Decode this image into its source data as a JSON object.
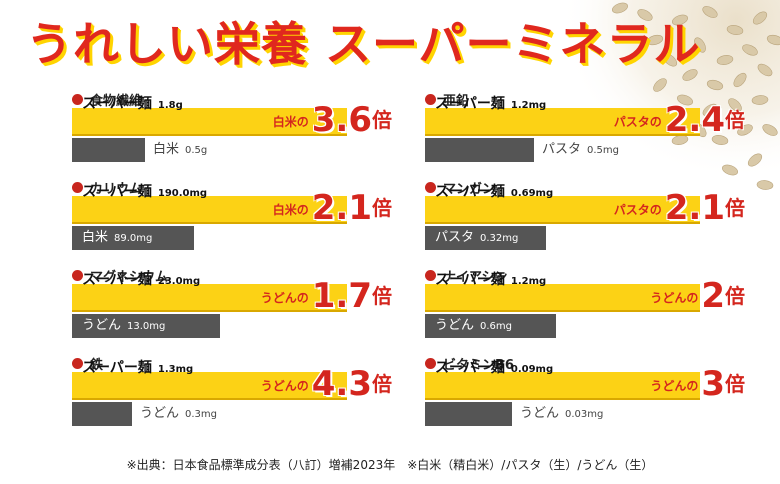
{
  "title": "うれしい栄養 スーパーミネラル",
  "footnote": "※出典：日本食品標準成分表（八訂）増補2023年　※白米（精白米）/パスタ（生）/うどん（生）",
  "colors": {
    "title": "#e0281e",
    "title_shadow": "#ffd400",
    "bar_top": "#fcd215",
    "bar_bottom": "#555555",
    "accent": "#d4261e"
  },
  "chart_data": [
    {
      "type": "bar",
      "label": "食物繊維",
      "top": {
        "name": "スーパー麺",
        "value": 1.8,
        "unit": "g",
        "value_text": "1.8g"
      },
      "bottom": {
        "name": "白米",
        "value": 0.5,
        "unit": "g",
        "value_text": "0.5g"
      },
      "ratio_prefix": "白米の",
      "ratio": "3.6",
      "ratio_suffix": "倍"
    },
    {
      "type": "bar",
      "label": "カリウム",
      "top": {
        "name": "スーパー麺",
        "value": 190.0,
        "unit": "mg",
        "value_text": "190.0mg"
      },
      "bottom": {
        "name": "白米",
        "value": 89.0,
        "unit": "mg",
        "value_text": "89.0mg"
      },
      "ratio_prefix": "白米の",
      "ratio": "2.1",
      "ratio_suffix": "倍"
    },
    {
      "type": "bar",
      "label": "マグネシウム",
      "top": {
        "name": "スーパー麺",
        "value": 23.0,
        "unit": "mg",
        "value_text": "23.0mg"
      },
      "bottom": {
        "name": "うどん",
        "value": 13.0,
        "unit": "mg",
        "value_text": "13.0mg"
      },
      "ratio_prefix": "うどんの",
      "ratio": "1.7",
      "ratio_suffix": "倍"
    },
    {
      "type": "bar",
      "label": "鉄",
      "top": {
        "name": "スーパー麺",
        "value": 1.3,
        "unit": "mg",
        "value_text": "1.3mg"
      },
      "bottom": {
        "name": "うどん",
        "value": 0.3,
        "unit": "mg",
        "value_text": "0.3mg"
      },
      "ratio_prefix": "うどんの",
      "ratio": "4.3",
      "ratio_suffix": "倍"
    },
    {
      "type": "bar",
      "label": "亜鉛",
      "top": {
        "name": "スーパー麺",
        "value": 1.2,
        "unit": "mg",
        "value_text": "1.2mg"
      },
      "bottom": {
        "name": "パスタ",
        "value": 0.5,
        "unit": "mg",
        "value_text": "0.5mg"
      },
      "ratio_prefix": "パスタの",
      "ratio": "2.4",
      "ratio_suffix": "倍"
    },
    {
      "type": "bar",
      "label": "マンガン",
      "top": {
        "name": "スーパー麺",
        "value": 0.69,
        "unit": "mg",
        "value_text": "0.69mg"
      },
      "bottom": {
        "name": "パスタ",
        "value": 0.32,
        "unit": "mg",
        "value_text": "0.32mg"
      },
      "ratio_prefix": "パスタの",
      "ratio": "2.1",
      "ratio_suffix": "倍"
    },
    {
      "type": "bar",
      "label": "ナイアシン",
      "top": {
        "name": "スーパー麺",
        "value": 1.2,
        "unit": "mg",
        "value_text": "1.2mg"
      },
      "bottom": {
        "name": "うどん",
        "value": 0.6,
        "unit": "mg",
        "value_text": "0.6mg"
      },
      "ratio_prefix": "うどんの",
      "ratio": "2",
      "ratio_suffix": "倍"
    },
    {
      "type": "bar",
      "label": "ビタミンB6",
      "top": {
        "name": "スーパー麺",
        "value": 0.09,
        "unit": "mg",
        "value_text": "0.09mg"
      },
      "bottom": {
        "name": "うどん",
        "value": 0.03,
        "unit": "mg",
        "value_text": "0.03mg"
      },
      "ratio_prefix": "うどんの",
      "ratio": "3",
      "ratio_suffix": "倍"
    }
  ]
}
